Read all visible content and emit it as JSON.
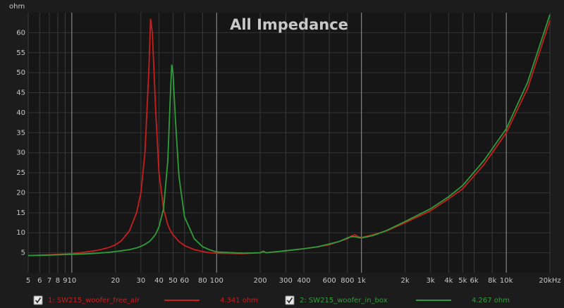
{
  "chart_data": {
    "type": "line",
    "title": "All Impedance",
    "y_label": "ohm",
    "log_x": true,
    "grid": true,
    "xlim": [
      5,
      20000
    ],
    "ylim": [
      0,
      65
    ],
    "xticks": [
      5,
      6,
      7,
      8,
      9,
      10,
      20,
      30,
      40,
      50,
      60,
      80,
      100,
      200,
      300,
      400,
      600,
      800,
      {
        "value": 1000,
        "label": "1k"
      },
      {
        "value": 2000,
        "label": "2k"
      },
      {
        "value": 3000,
        "label": "3k"
      },
      {
        "value": 4000,
        "label": "4k"
      },
      {
        "value": 5000,
        "label": "5k"
      },
      {
        "value": 6000,
        "label": "6k"
      },
      {
        "value": 8000,
        "label": "8k"
      },
      {
        "value": 10000,
        "label": "10k"
      },
      {
        "value": 20000,
        "label": "20kHz"
      }
    ],
    "yticks": [
      5,
      10,
      15,
      20,
      25,
      30,
      35,
      40,
      45,
      50,
      55,
      60
    ],
    "x": [
      5,
      6,
      7,
      8,
      10,
      12,
      15,
      18,
      20,
      22,
      25,
      28,
      30,
      32,
      34,
      35,
      36,
      38,
      40,
      43,
      46,
      48,
      49,
      50,
      52,
      55,
      60,
      70,
      80,
      90,
      100,
      150,
      200,
      210,
      220,
      300,
      400,
      500,
      600,
      700,
      800,
      850,
      900,
      950,
      1000,
      1200,
      1500,
      2000,
      3000,
      4000,
      5000,
      7000,
      10000,
      14000,
      20000
    ],
    "series": [
      {
        "name": "1: SW215_woofer_free_air",
        "color": "#c81e1e",
        "readout": "4.341 ohm",
        "values": [
          4.3,
          4.4,
          4.5,
          4.6,
          4.8,
          5.1,
          5.6,
          6.3,
          7.0,
          8.0,
          10.5,
          15,
          20,
          30,
          50,
          63.5,
          60,
          40,
          25,
          16,
          12,
          10.5,
          10,
          9.5,
          8.8,
          7.8,
          6.8,
          5.8,
          5.3,
          5.0,
          4.9,
          4.8,
          5.0,
          5.4,
          5.0,
          5.5,
          6.0,
          6.5,
          7.0,
          7.8,
          8.5,
          9.2,
          9.5,
          9.0,
          8.8,
          9.5,
          10.5,
          12.5,
          15.5,
          18.5,
          21,
          27,
          35,
          46,
          63
        ]
      },
      {
        "name": "2: SW215_woofer_in_box",
        "color": "#2e9e3a",
        "readout": "4.267 ohm",
        "values": [
          4.3,
          4.35,
          4.4,
          4.5,
          4.6,
          4.7,
          4.9,
          5.1,
          5.3,
          5.5,
          5.8,
          6.2,
          6.6,
          7.1,
          7.7,
          8.1,
          8.6,
          9.7,
          11.5,
          16,
          28,
          45,
          52,
          50,
          38,
          24,
          14,
          8.5,
          6.5,
          5.7,
          5.2,
          4.9,
          5.0,
          5.3,
          5.0,
          5.5,
          6.0,
          6.5,
          7.2,
          7.8,
          8.7,
          9.0,
          9.0,
          8.8,
          8.7,
          9.3,
          10.6,
          12.8,
          16,
          19,
          21.8,
          28,
          36,
          47.5,
          64.5
        ]
      }
    ]
  }
}
